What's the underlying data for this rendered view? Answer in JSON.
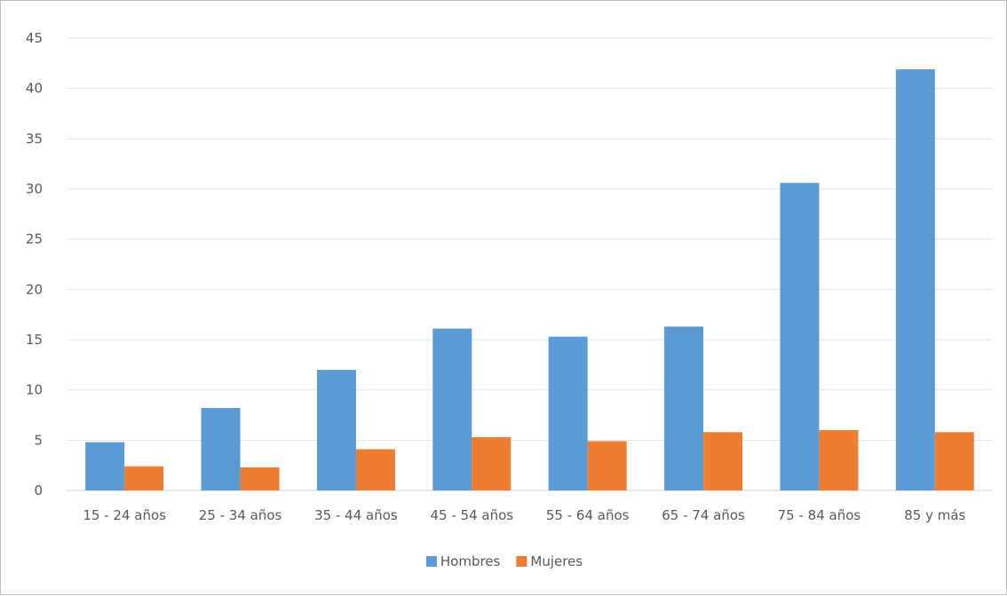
{
  "chart_data": {
    "type": "bar",
    "title": "",
    "xlabel": "",
    "ylabel": "",
    "categories": [
      "15 - 24 años",
      "25 - 34 años",
      "35 - 44 años",
      "45 - 54 años",
      "55 - 64 años",
      "65 - 74 años",
      "75 - 84 años",
      "85 y más"
    ],
    "series": [
      {
        "name": "Hombres",
        "color": "#5B9BD5",
        "values": [
          4.8,
          8.2,
          12.0,
          16.1,
          15.3,
          16.3,
          30.6,
          41.9
        ]
      },
      {
        "name": "Mujeres",
        "color": "#ED7D31",
        "values": [
          2.4,
          2.3,
          4.1,
          5.3,
          4.9,
          5.8,
          6.0,
          5.8
        ]
      }
    ],
    "ylim": [
      0,
      45
    ],
    "yticks": [
      0,
      5,
      10,
      15,
      20,
      25,
      30,
      35,
      40,
      45
    ],
    "grid": true,
    "legend_position": "bottom"
  }
}
